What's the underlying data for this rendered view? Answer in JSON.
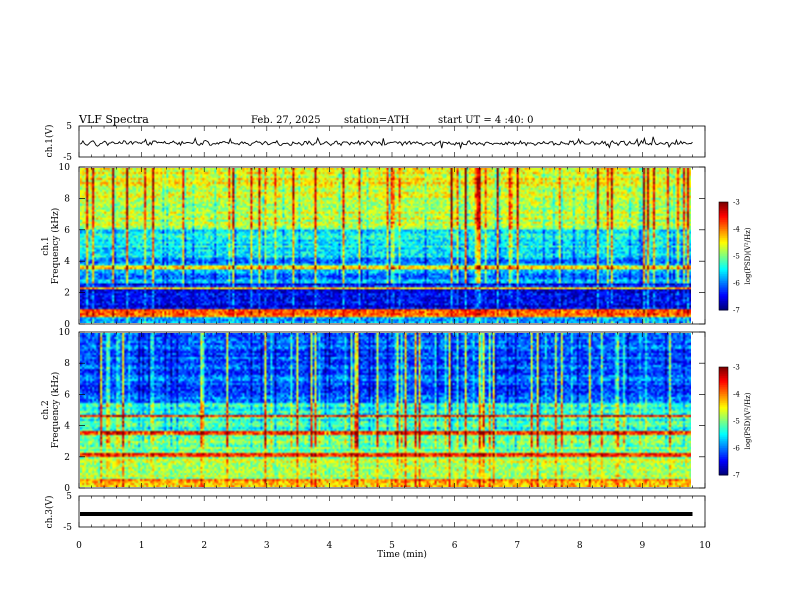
{
  "header": {
    "title": "VLF  Spectra",
    "date": "Feb. 27, 2025",
    "station": "station=ATH",
    "start_ut": "start  UT  =   4  :40: 0"
  },
  "chart_data": [
    {
      "type": "line",
      "panel": "ch1-waveform",
      "ylabel": "ch.1(V)",
      "ylim": [
        -5,
        5
      ],
      "yticks": [
        "5",
        "-5"
      ],
      "xlim": [
        0,
        10
      ],
      "x_extent_min": 9.8,
      "description_level": -0.5,
      "color": "#000000"
    },
    {
      "type": "heatmap",
      "panel": "ch1-spectrogram",
      "ylabel": "ch.1\nFrequency  (kHz)",
      "ylim": [
        0,
        10
      ],
      "yticks": [
        "0",
        "2",
        "4",
        "6",
        "8",
        "10"
      ],
      "xlim": [
        0,
        10
      ],
      "x_extent_min": 9.8,
      "colorbar": {
        "label": "log(PSD)(V²/Hz)",
        "range": [
          -7,
          -3
        ],
        "ticks": [
          "-3",
          "-4",
          "-5",
          "-6",
          "-7"
        ]
      }
    },
    {
      "type": "heatmap",
      "panel": "ch2-spectrogram",
      "ylabel": "ch.2\nFrequency  (kHz)",
      "ylim": [
        0,
        10
      ],
      "yticks": [
        "0",
        "2",
        "4",
        "6",
        "8",
        "10"
      ],
      "xlim": [
        0,
        10
      ],
      "x_extent_min": 9.8,
      "colorbar": {
        "label": "log(PSD)(V²/Hz)",
        "range": [
          -7,
          -3
        ],
        "ticks": [
          "-3",
          "-4",
          "-5",
          "-6",
          "-7"
        ]
      }
    },
    {
      "type": "line",
      "panel": "ch3-waveform",
      "ylabel": "ch.3(V)",
      "ylim": [
        -5,
        5
      ],
      "yticks": [
        "5",
        "-5"
      ],
      "xlim": [
        0,
        10
      ],
      "x_extent_min": 9.8,
      "level": -0.8,
      "color": "#000000"
    }
  ],
  "xaxis": {
    "label": "Time  (min)",
    "ticks": [
      "0",
      "1",
      "2",
      "3",
      "4",
      "5",
      "6",
      "7",
      "8",
      "9",
      "10"
    ]
  },
  "colorbar_label": "log(PSD)(V²/Hz)"
}
